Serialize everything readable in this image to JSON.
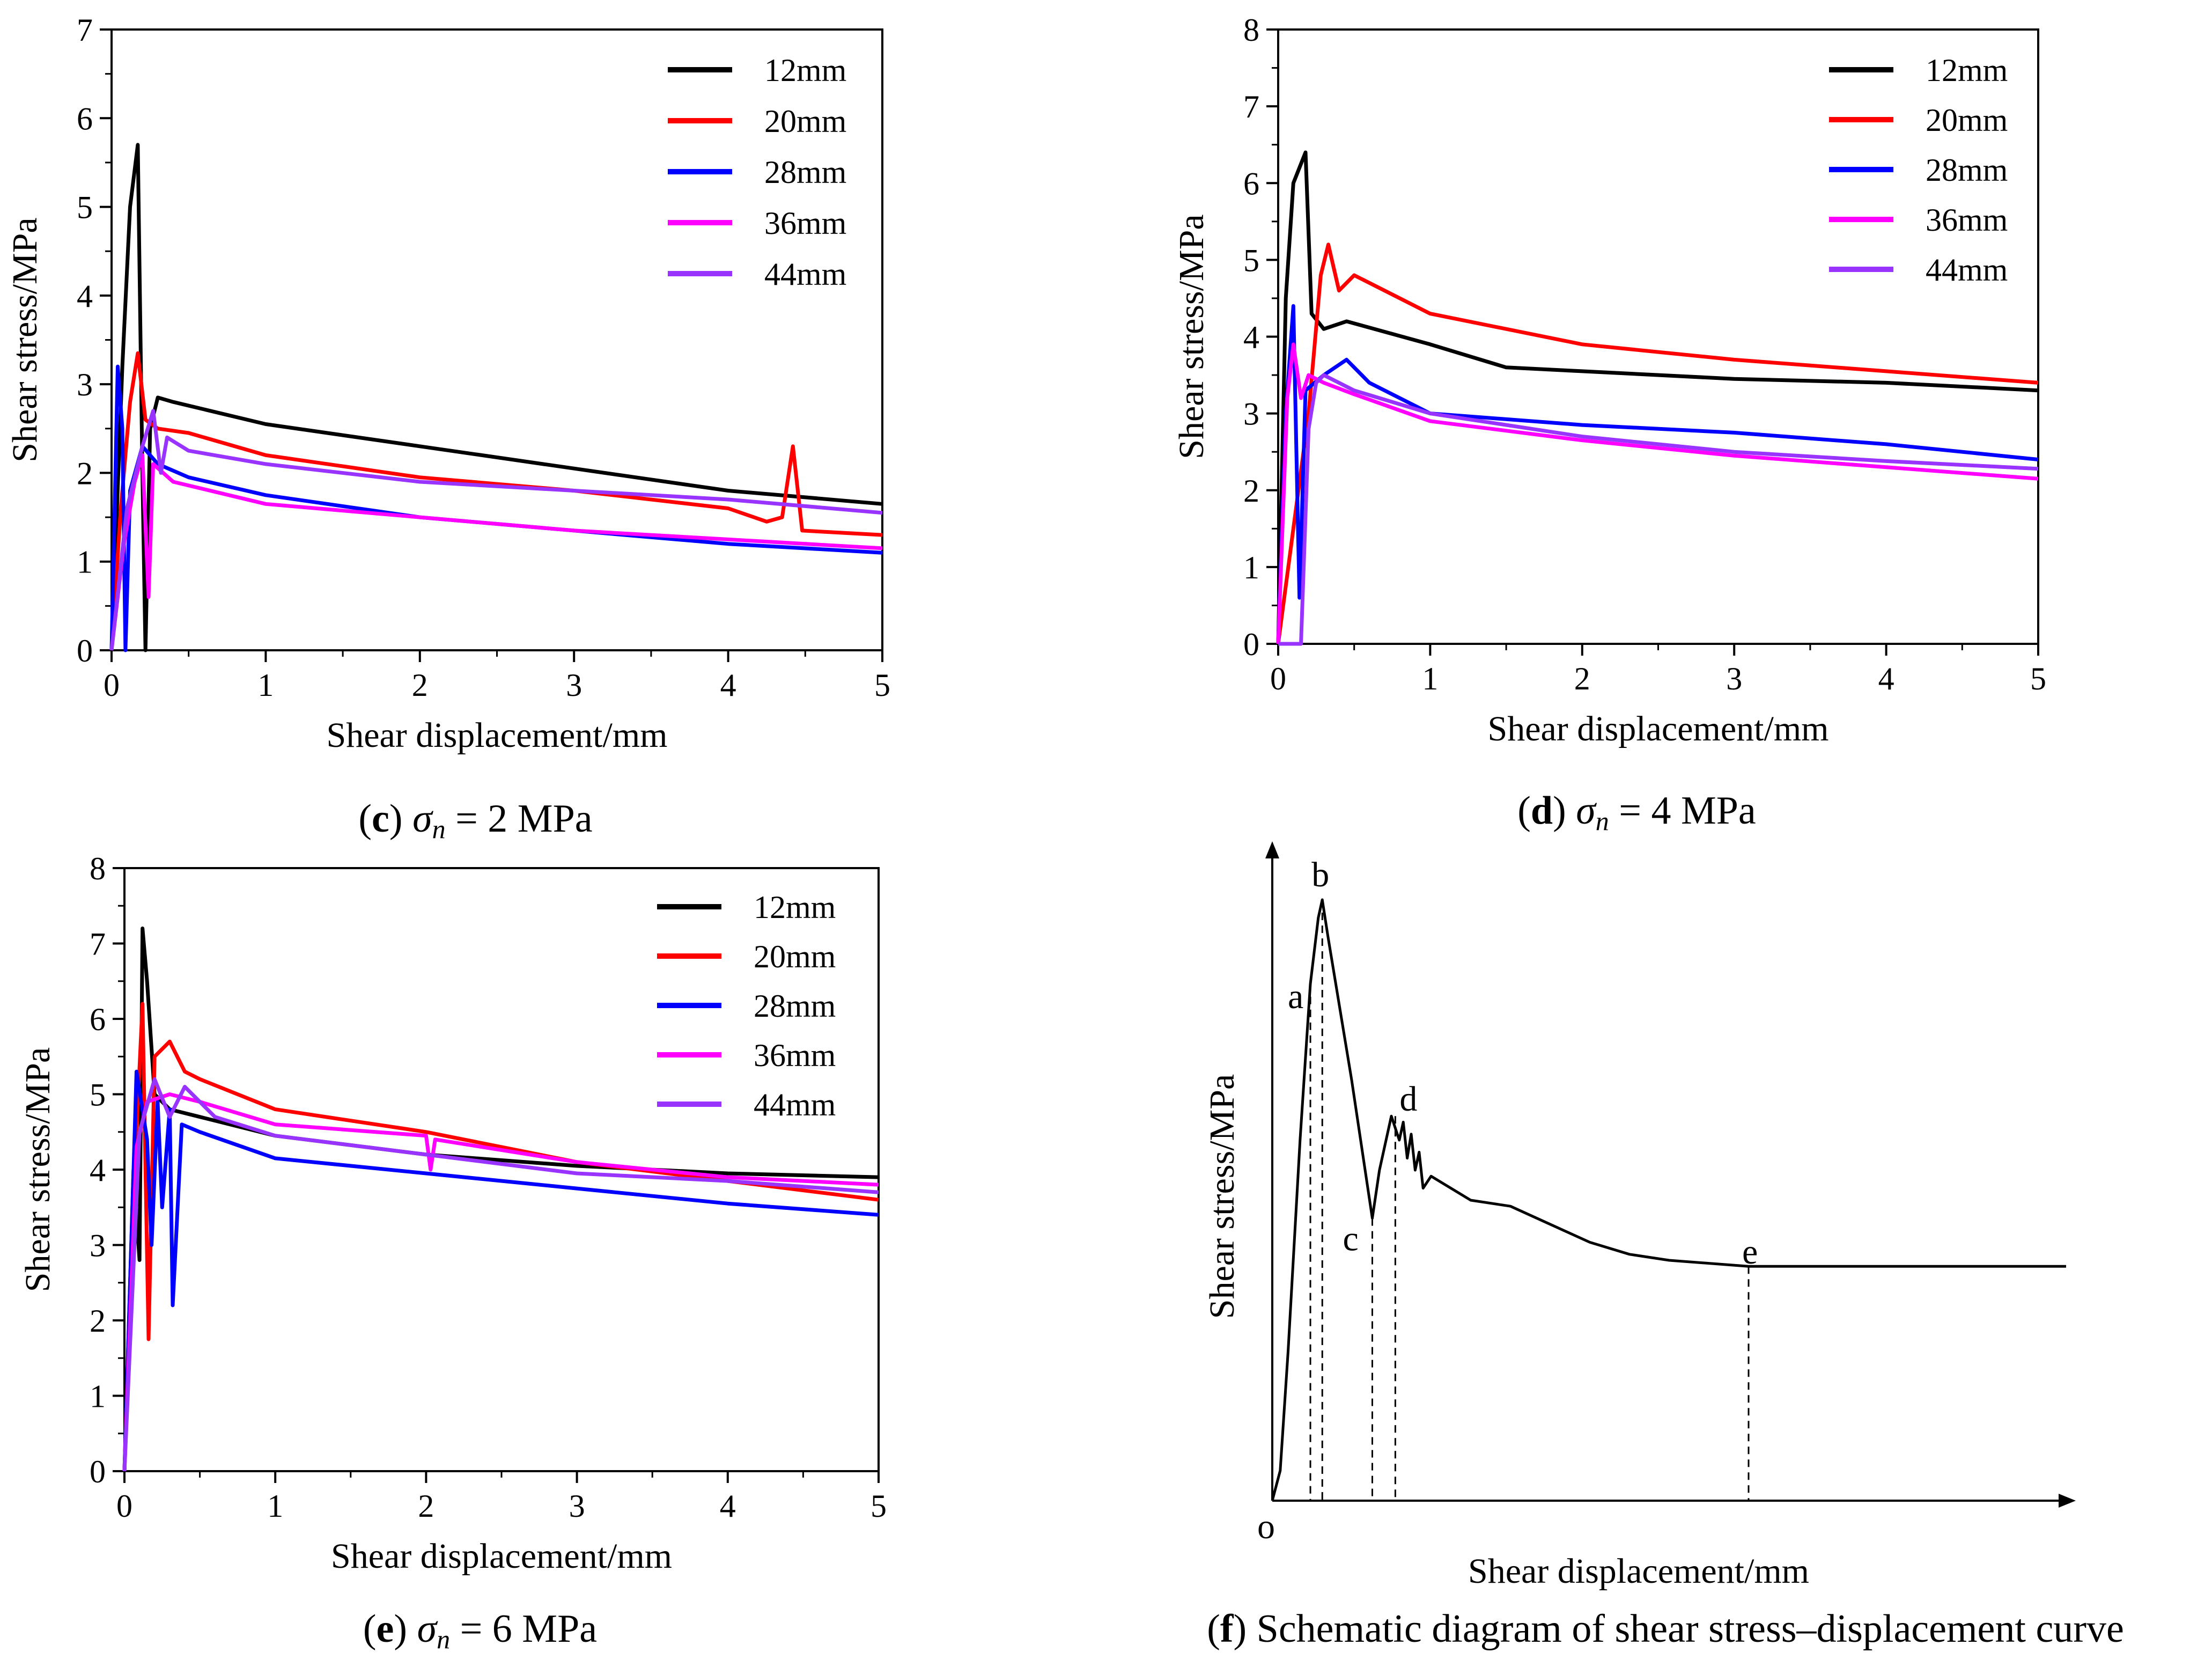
{
  "chart_data": [
    {
      "id": "c",
      "type": "line",
      "caption": {
        "letter": "c",
        "symbol": "σ",
        "subscript": "n",
        "rest": " = 2 MPa"
      },
      "xlabel": "Shear displacement/mm",
      "ylabel": "Shear stress/MPa",
      "xlim": [
        0,
        5
      ],
      "ylim": [
        0,
        7
      ],
      "xticks": [
        0,
        1,
        2,
        3,
        4,
        5
      ],
      "yticks": [
        0,
        1,
        2,
        3,
        4,
        5,
        6,
        7
      ],
      "legend_position": "top-right",
      "series": [
        {
          "name": "12mm",
          "color": "#000000",
          "points": [
            [
              0,
              0
            ],
            [
              0.07,
              3.2
            ],
            [
              0.12,
              5.0
            ],
            [
              0.17,
              5.7
            ],
            [
              0.2,
              2.0
            ],
            [
              0.22,
              0
            ],
            [
              0.25,
              2.5
            ],
            [
              0.3,
              2.85
            ],
            [
              0.4,
              2.8
            ],
            [
              1,
              2.55
            ],
            [
              2,
              2.3
            ],
            [
              3,
              2.05
            ],
            [
              4,
              1.8
            ],
            [
              5,
              1.65
            ]
          ]
        },
        {
          "name": "20mm",
          "color": "#ff0000",
          "points": [
            [
              0,
              0
            ],
            [
              0.06,
              1.6
            ],
            [
              0.12,
              2.8
            ],
            [
              0.17,
              3.35
            ],
            [
              0.22,
              2.6
            ],
            [
              0.3,
              2.5
            ],
            [
              0.5,
              2.45
            ],
            [
              1,
              2.2
            ],
            [
              2,
              1.95
            ],
            [
              3,
              1.8
            ],
            [
              4,
              1.6
            ],
            [
              4.25,
              1.45
            ],
            [
              4.35,
              1.5
            ],
            [
              4.42,
              2.3
            ],
            [
              4.48,
              1.35
            ],
            [
              5,
              1.3
            ]
          ]
        },
        {
          "name": "28mm",
          "color": "#0000ff",
          "points": [
            [
              0,
              0
            ],
            [
              0.04,
              3.2
            ],
            [
              0.07,
              2.5
            ],
            [
              0.09,
              0
            ],
            [
              0.12,
              1.8
            ],
            [
              0.2,
              2.3
            ],
            [
              0.3,
              2.1
            ],
            [
              0.5,
              1.95
            ],
            [
              1,
              1.75
            ],
            [
              2,
              1.5
            ],
            [
              3,
              1.35
            ],
            [
              4,
              1.2
            ],
            [
              5,
              1.1
            ]
          ]
        },
        {
          "name": "36mm",
          "color": "#ff00ff",
          "points": [
            [
              0,
              0
            ],
            [
              0.08,
              1.2
            ],
            [
              0.15,
              1.9
            ],
            [
              0.2,
              2.2
            ],
            [
              0.24,
              0.6
            ],
            [
              0.27,
              2.1
            ],
            [
              0.4,
              1.9
            ],
            [
              1,
              1.65
            ],
            [
              2,
              1.5
            ],
            [
              3,
              1.35
            ],
            [
              4,
              1.25
            ],
            [
              5,
              1.15
            ]
          ]
        },
        {
          "name": "44mm",
          "color": "#9933ff",
          "points": [
            [
              0,
              0
            ],
            [
              0.1,
              1.6
            ],
            [
              0.2,
              2.3
            ],
            [
              0.27,
              2.7
            ],
            [
              0.32,
              2.0
            ],
            [
              0.36,
              2.4
            ],
            [
              0.5,
              2.25
            ],
            [
              1,
              2.1
            ],
            [
              2,
              1.9
            ],
            [
              3,
              1.8
            ],
            [
              4,
              1.7
            ],
            [
              5,
              1.55
            ]
          ]
        }
      ]
    },
    {
      "id": "d",
      "type": "line",
      "caption": {
        "letter": "d",
        "symbol": "σ",
        "subscript": "n",
        "rest": " = 4 MPa"
      },
      "xlabel": "Shear displacement/mm",
      "ylabel": "Shear stress/MPa",
      "xlim": [
        0,
        5
      ],
      "ylim": [
        0,
        8
      ],
      "xticks": [
        0,
        1,
        2,
        3,
        4,
        5
      ],
      "yticks": [
        0,
        1,
        2,
        3,
        4,
        5,
        6,
        7,
        8
      ],
      "legend_position": "top-right",
      "series": [
        {
          "name": "12mm",
          "color": "#000000",
          "points": [
            [
              0,
              0
            ],
            [
              0.05,
              4.5
            ],
            [
              0.1,
              6.0
            ],
            [
              0.18,
              6.4
            ],
            [
              0.22,
              4.3
            ],
            [
              0.3,
              4.1
            ],
            [
              0.45,
              4.2
            ],
            [
              1,
              3.9
            ],
            [
              1.5,
              3.6
            ],
            [
              2,
              3.55
            ],
            [
              3,
              3.45
            ],
            [
              4,
              3.4
            ],
            [
              5,
              3.3
            ]
          ]
        },
        {
          "name": "20mm",
          "color": "#ff0000",
          "points": [
            [
              0,
              0
            ],
            [
              0.1,
              1.5
            ],
            [
              0.2,
              3.0
            ],
            [
              0.28,
              4.8
            ],
            [
              0.33,
              5.2
            ],
            [
              0.4,
              4.6
            ],
            [
              0.5,
              4.8
            ],
            [
              1,
              4.3
            ],
            [
              2,
              3.9
            ],
            [
              3,
              3.7
            ],
            [
              4,
              3.55
            ],
            [
              5,
              3.4
            ]
          ]
        },
        {
          "name": "28mm",
          "color": "#0000ff",
          "points": [
            [
              0,
              0
            ],
            [
              0.05,
              3.0
            ],
            [
              0.1,
              4.4
            ],
            [
              0.14,
              0.6
            ],
            [
              0.18,
              3.3
            ],
            [
              0.3,
              3.5
            ],
            [
              0.45,
              3.7
            ],
            [
              0.6,
              3.4
            ],
            [
              1,
              3.0
            ],
            [
              2,
              2.85
            ],
            [
              3,
              2.75
            ],
            [
              4,
              2.6
            ],
            [
              5,
              2.4
            ]
          ]
        },
        {
          "name": "36mm",
          "color": "#ff00ff",
          "points": [
            [
              0,
              0
            ],
            [
              0.06,
              3.2
            ],
            [
              0.1,
              3.9
            ],
            [
              0.15,
              3.2
            ],
            [
              0.2,
              3.5
            ],
            [
              0.3,
              3.4
            ],
            [
              0.5,
              3.25
            ],
            [
              1,
              2.9
            ],
            [
              2,
              2.65
            ],
            [
              3,
              2.45
            ],
            [
              4,
              2.3
            ],
            [
              5,
              2.15
            ]
          ]
        },
        {
          "name": "44mm",
          "color": "#9933ff",
          "points": [
            [
              0,
              0
            ],
            [
              0.15,
              0
            ],
            [
              0.2,
              2.8
            ],
            [
              0.25,
              3.4
            ],
            [
              0.3,
              3.5
            ],
            [
              0.5,
              3.3
            ],
            [
              1,
              3.0
            ],
            [
              2,
              2.7
            ],
            [
              3,
              2.5
            ],
            [
              4,
              2.38
            ],
            [
              5,
              2.28
            ]
          ]
        }
      ]
    },
    {
      "id": "e",
      "type": "line",
      "caption": {
        "letter": "e",
        "symbol": "σ",
        "subscript": "n",
        "rest": " = 6 MPa"
      },
      "xlabel": "Shear displacement/mm",
      "ylabel": "Shear stress/MPa",
      "xlim": [
        0,
        5
      ],
      "ylim": [
        0,
        8
      ],
      "xticks": [
        0,
        1,
        2,
        3,
        4,
        5
      ],
      "yticks": [
        0,
        1,
        2,
        3,
        4,
        5,
        6,
        7,
        8
      ],
      "legend_position": "top-right",
      "series": [
        {
          "name": "12mm",
          "color": "#000000",
          "points": [
            [
              0,
              0
            ],
            [
              0.06,
              4.0
            ],
            [
              0.1,
              2.8
            ],
            [
              0.12,
              7.2
            ],
            [
              0.15,
              6.5
            ],
            [
              0.2,
              5.0
            ],
            [
              0.3,
              4.8
            ],
            [
              0.5,
              4.7
            ],
            [
              1,
              4.45
            ],
            [
              2,
              4.2
            ],
            [
              3,
              4.05
            ],
            [
              4,
              3.95
            ],
            [
              5,
              3.9
            ]
          ]
        },
        {
          "name": "20mm",
          "color": "#ff0000",
          "points": [
            [
              0,
              0
            ],
            [
              0.08,
              4.5
            ],
            [
              0.12,
              6.2
            ],
            [
              0.16,
              1.75
            ],
            [
              0.2,
              5.5
            ],
            [
              0.3,
              5.7
            ],
            [
              0.4,
              5.3
            ],
            [
              0.5,
              5.2
            ],
            [
              1,
              4.8
            ],
            [
              1.5,
              4.65
            ],
            [
              2,
              4.5
            ],
            [
              3,
              4.1
            ],
            [
              4,
              3.85
            ],
            [
              5,
              3.6
            ]
          ]
        },
        {
          "name": "28mm",
          "color": "#0000ff",
          "points": [
            [
              0,
              0
            ],
            [
              0.08,
              5.3
            ],
            [
              0.15,
              4.4
            ],
            [
              0.18,
              3.0
            ],
            [
              0.22,
              4.9
            ],
            [
              0.25,
              3.5
            ],
            [
              0.3,
              4.8
            ],
            [
              0.32,
              2.2
            ],
            [
              0.38,
              4.6
            ],
            [
              0.5,
              4.5
            ],
            [
              1,
              4.15
            ],
            [
              2,
              3.95
            ],
            [
              3,
              3.75
            ],
            [
              4,
              3.55
            ],
            [
              5,
              3.4
            ]
          ]
        },
        {
          "name": "36mm",
          "color": "#ff00ff",
          "points": [
            [
              0,
              0
            ],
            [
              0.08,
              4.3
            ],
            [
              0.15,
              4.9
            ],
            [
              0.3,
              5.0
            ],
            [
              0.5,
              4.9
            ],
            [
              1,
              4.6
            ],
            [
              2,
              4.45
            ],
            [
              2.03,
              4.0
            ],
            [
              2.06,
              4.4
            ],
            [
              3,
              4.1
            ],
            [
              4,
              3.9
            ],
            [
              5,
              3.8
            ]
          ]
        },
        {
          "name": "44mm",
          "color": "#9933ff",
          "points": [
            [
              0,
              0
            ],
            [
              0.1,
              4.5
            ],
            [
              0.2,
              5.2
            ],
            [
              0.3,
              4.7
            ],
            [
              0.4,
              5.1
            ],
            [
              0.6,
              4.7
            ],
            [
              1,
              4.45
            ],
            [
              2,
              4.2
            ],
            [
              3,
              3.95
            ],
            [
              4,
              3.85
            ],
            [
              5,
              3.7
            ]
          ]
        }
      ]
    }
  ],
  "schematic": {
    "caption_letter": "f",
    "caption_rest": " Schematic diagram of shear stress–displacement curve",
    "xlabel": "Shear displacement/mm",
    "ylabel": "Shear stress/MPa",
    "origin_label": "o",
    "points": [
      {
        "label": "a",
        "u": 0.048,
        "v": 0.86
      },
      {
        "label": "b",
        "u": 0.063,
        "v": 1.0
      },
      {
        "label": "c",
        "u": 0.126,
        "v": 0.47
      },
      {
        "label": "d",
        "u": 0.155,
        "v": 0.64
      },
      {
        "label": "e",
        "u": 0.6,
        "v": 0.39
      }
    ],
    "curve": [
      [
        0,
        0
      ],
      [
        0.01,
        0.05
      ],
      [
        0.02,
        0.25
      ],
      [
        0.035,
        0.6
      ],
      [
        0.048,
        0.86
      ],
      [
        0.058,
        0.97
      ],
      [
        0.063,
        1.0
      ],
      [
        0.07,
        0.94
      ],
      [
        0.1,
        0.7
      ],
      [
        0.126,
        0.47
      ],
      [
        0.135,
        0.55
      ],
      [
        0.15,
        0.64
      ],
      [
        0.155,
        0.62
      ],
      [
        0.16,
        0.6
      ],
      [
        0.165,
        0.63
      ],
      [
        0.17,
        0.57
      ],
      [
        0.175,
        0.61
      ],
      [
        0.18,
        0.55
      ],
      [
        0.185,
        0.58
      ],
      [
        0.19,
        0.52
      ],
      [
        0.2,
        0.54
      ],
      [
        0.25,
        0.5
      ],
      [
        0.3,
        0.49
      ],
      [
        0.35,
        0.46
      ],
      [
        0.4,
        0.43
      ],
      [
        0.45,
        0.41
      ],
      [
        0.5,
        0.4
      ],
      [
        0.6,
        0.39
      ],
      [
        0.7,
        0.39
      ],
      [
        0.8,
        0.39
      ],
      [
        1.0,
        0.39
      ]
    ]
  }
}
